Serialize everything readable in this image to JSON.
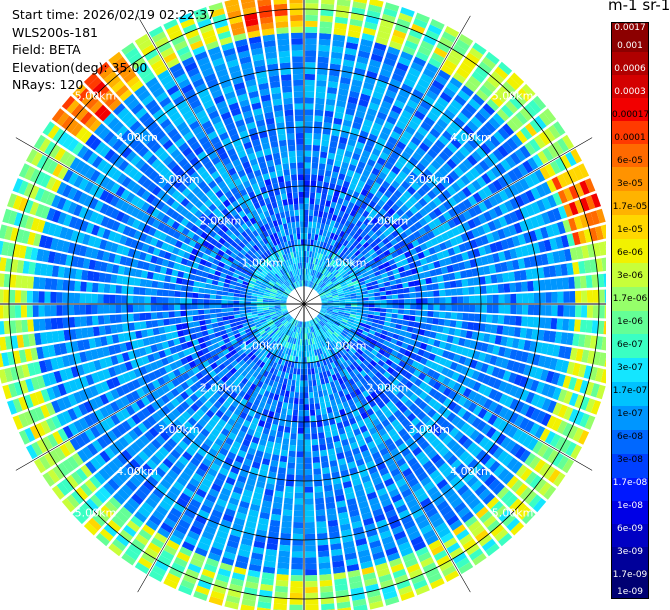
{
  "info": {
    "start_time": "Start time: 2026/02/19 02:22:37",
    "instrument": "WLS200s-181",
    "field": "Field: BETA",
    "elevation": "Elevation(deg): 35.00",
    "nrays": "NRays: 120"
  },
  "colorbar": {
    "title": "m-1 sr-1",
    "labels": [
      "0.0017",
      "0.001",
      "0.0006",
      "0.0003",
      "0.00017",
      "0.0001",
      "6e-05",
      "3e-05",
      "1.7e-05",
      "1e-05",
      "6e-06",
      "3e-06",
      "1.7e-06",
      "1e-06",
      "6e-07",
      "3e-07",
      "1.7e-07",
      "1e-07",
      "6e-08",
      "3e-08",
      "1.7e-08",
      "1e-08",
      "6e-09",
      "3e-09",
      "1.7e-09",
      "1e-09"
    ],
    "colors": [
      "#8c0000",
      "#b00000",
      "#d40000",
      "#f20000",
      "#ff3a00",
      "#ff6a00",
      "#ff9300",
      "#ffb300",
      "#ffd700",
      "#f2f200",
      "#c8ff3a",
      "#96ff6a",
      "#64ff96",
      "#3affc3",
      "#14e6ff",
      "#00c3ff",
      "#0096ff",
      "#0068ff",
      "#0040ff",
      "#0018ff",
      "#0000e6",
      "#0000c3",
      "#00009a",
      "#000072"
    ]
  },
  "chart_data": {
    "type": "heatmap",
    "projection": "PPI polar scan",
    "field": "BETA",
    "units": "m-1 sr-1",
    "elevation_deg": 35.0,
    "n_rays": 120,
    "max_range_km": 5.3,
    "range_ring_labels": [
      "1.00km",
      "2.00km",
      "3.00km",
      "4.00km",
      "5.00km"
    ],
    "range_rings_km": [
      1,
      2,
      3,
      4,
      5
    ],
    "color_scale": "log",
    "value_range": [
      1e-09,
      0.0017
    ],
    "features": {
      "inner_core_km": [
        0,
        1.0
      ],
      "inner_core_level": "1e-07 to 3e-07",
      "mid_range_km": [
        1.0,
        4.5
      ],
      "mid_range_level": "3e-08 to 1e-07",
      "enhanced_band_km": [
        4.6,
        5.3
      ],
      "enhanced_band_level": "1.7e-06 to 1e-05",
      "hotspots": [
        {
          "azimuth_deg": 315,
          "range_km": 5.0,
          "level": "6e-05 to 0.0003"
        },
        {
          "azimuth_deg": 352,
          "range_km": 5.05,
          "level": "3e-05 to 0.0001"
        },
        {
          "azimuth_deg": 70,
          "range_km": 5.1,
          "level": "3e-05 to 0.0001"
        }
      ]
    }
  }
}
